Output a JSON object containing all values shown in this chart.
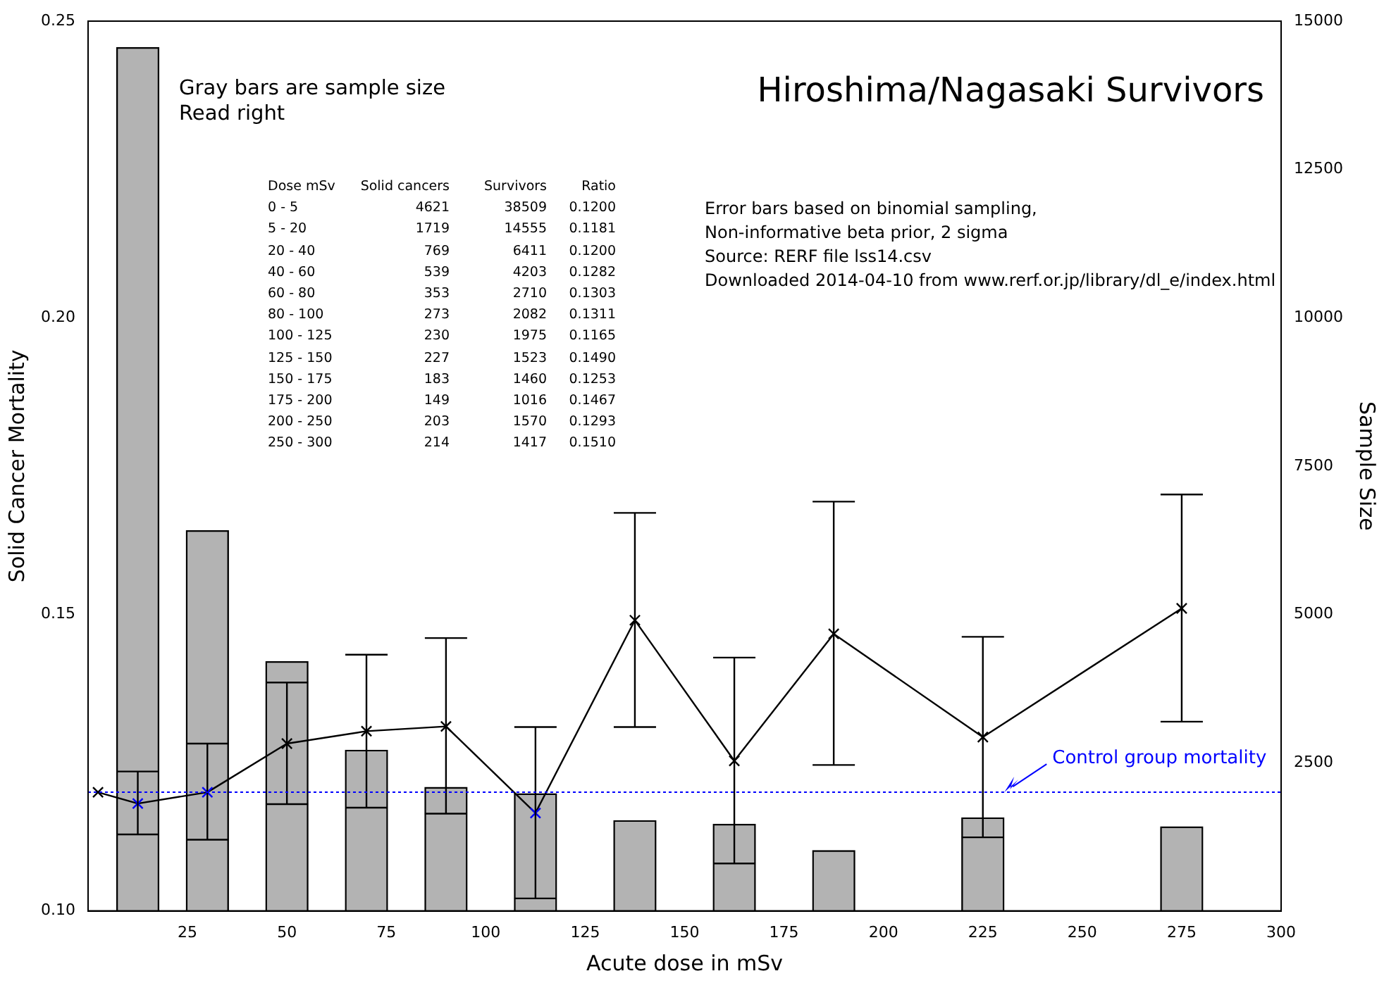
{
  "chart_data": {
    "type": "line",
    "title": "Hiroshima/Nagasaki Survivors",
    "xlabel": "Acute dose in mSv",
    "ylabel": "Solid Cancer Mortality",
    "y2label": "Sample Size",
    "xlim": [
      0,
      300
    ],
    "xticks": [
      25,
      50,
      75,
      100,
      125,
      150,
      175,
      200,
      225,
      250,
      275,
      300
    ],
    "ylim": [
      0.1,
      0.25
    ],
    "yticks": [
      {
        "value": 0.1,
        "label": "0.10"
      },
      0.15,
      {
        "value": 0.2,
        "label": "0.20"
      },
      0.25
    ],
    "y2lim": [
      0,
      15000
    ],
    "y2ticks": [
      2500,
      5000,
      7500,
      10000,
      12500,
      15000
    ],
    "grid": false,
    "legend": false,
    "series": [
      {
        "type": "bar",
        "axis": "y2",
        "color": "#b3b3b3",
        "x": [
          12.5,
          30,
          50,
          70,
          90,
          112.5,
          137.5,
          162.5,
          187.5,
          225,
          275
        ],
        "values": [
          14555,
          6411,
          4203,
          2710,
          2082,
          1975,
          1523,
          1460,
          1016,
          1570,
          1417
        ]
      },
      {
        "color": "#000000",
        "marker": "cross",
        "colors": [
          "#000000",
          "#0000ff",
          "#0000ff",
          "#000000",
          "#000000",
          "#000000",
          "#0000ff",
          "#000000",
          "#000000",
          "#000000",
          "#000000",
          "#000000"
        ],
        "x": [
          2.5,
          12.5,
          30,
          50,
          70,
          90,
          112.5,
          137.5,
          162.5,
          187.5,
          225,
          275
        ],
        "values": [
          0.12,
          0.1181,
          0.12,
          0.1282,
          0.1303,
          0.1311,
          0.1165,
          0.149,
          0.1253,
          0.1467,
          0.1293,
          0.151
        ],
        "errors": [
          null,
          [
            0.1129,
            0.1235
          ],
          [
            0.112,
            0.1282
          ],
          [
            0.118,
            0.1385
          ],
          [
            0.1174,
            0.1432
          ],
          [
            0.1164,
            0.146
          ],
          [
            0.1021,
            0.131
          ],
          [
            0.131,
            0.1671
          ],
          [
            0.108,
            0.1427
          ],
          [
            0.1246,
            0.169
          ],
          [
            0.1124,
            0.1462
          ],
          [
            0.1319,
            0.1702
          ]
        ]
      }
    ],
    "ref_lines": [
      {
        "axis": "y",
        "value": 0.12,
        "label": "Control group mortality",
        "color": "#0000ff",
        "line_style": "dotted"
      }
    ],
    "annotations": [
      "Gray bars are sample size",
      "Read right",
      "Error bars based on binomial sampling,",
      "Non-informative beta prior, 2 sigma",
      "Source: RERF file lss14.csv",
      "Downloaded 2014-04-10 from www.rerf.or.jp/library/dl_e/index.html",
      "Dose mSv\tSolid cancers\tSurvivors\tRatio",
      "0 - 5\t4621\t38509\t0.1200",
      "5 - 20\t1719\t14555\t0.1181",
      "20 - 40\t769\t6411\t0.1200",
      "40 - 60\t539\t4203\t0.1282",
      "60 - 80\t353\t2710\t0.1303",
      "80 - 100\t273\t2082\t0.1311",
      "100 - 125\t230\t1975\t0.1165",
      "125 - 150\t227\t1523\t0.1490",
      "150 - 175\t183\t1460\t0.1253",
      "175 - 200\t149\t1016\t0.1467",
      "200 - 250\t203\t1570\t0.1293",
      "250 - 300\t214\t1417\t0.1510"
    ]
  }
}
